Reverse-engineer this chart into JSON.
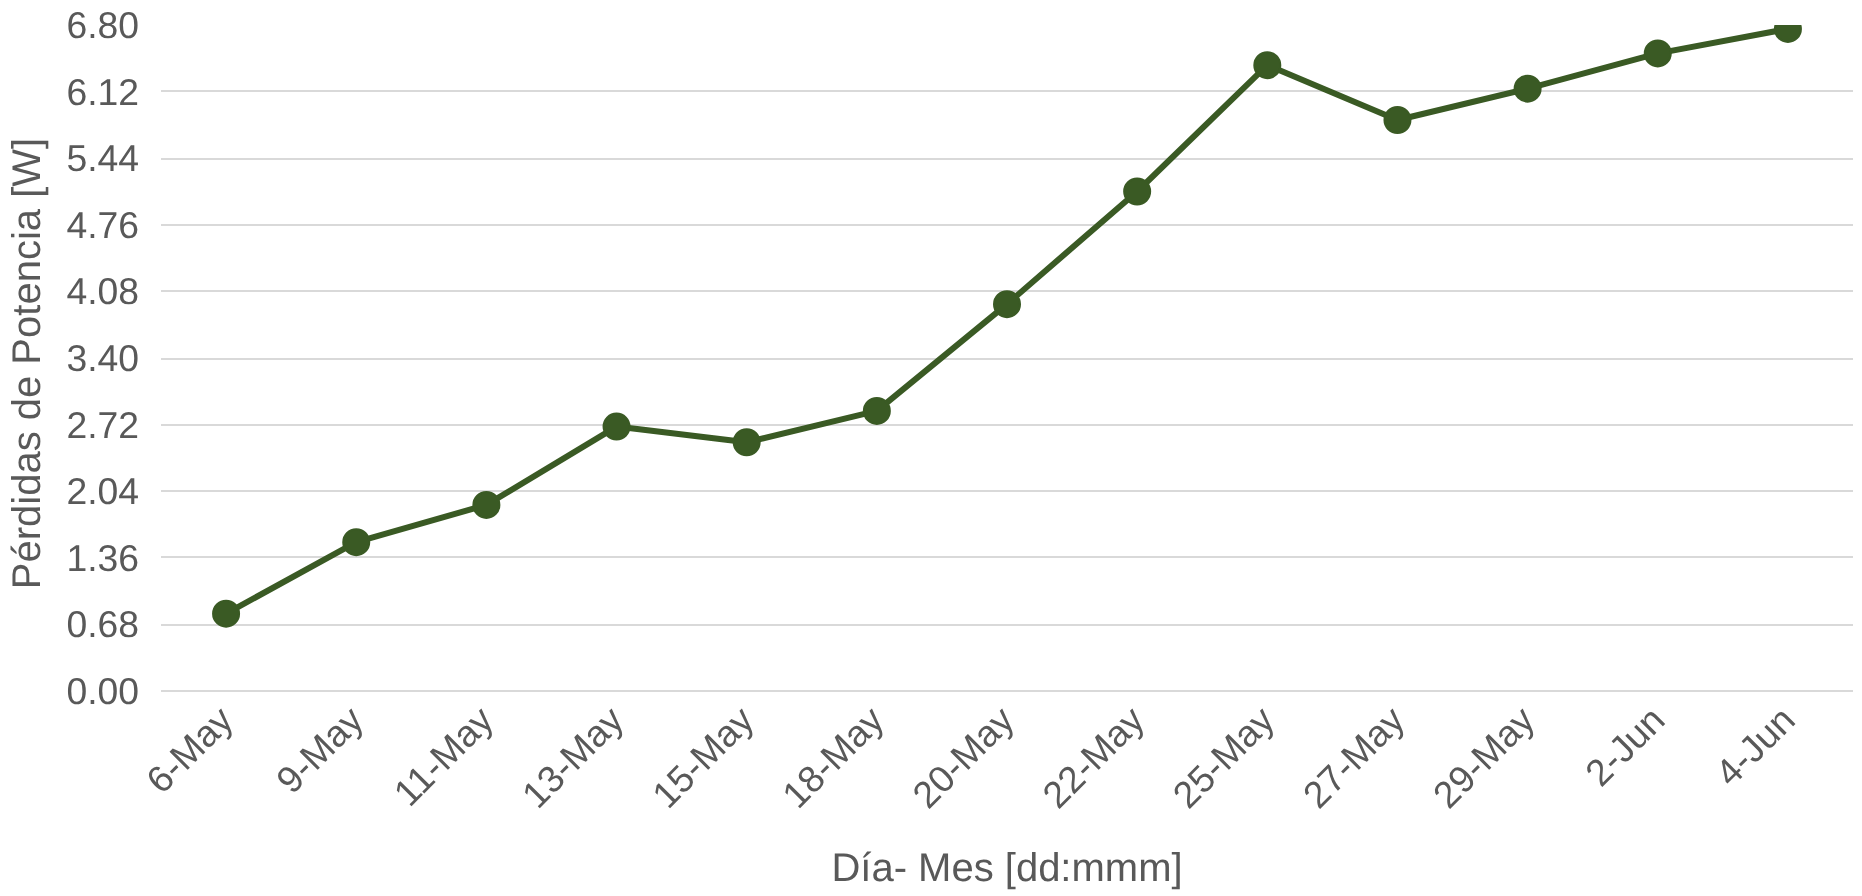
{
  "chart_data": {
    "type": "line",
    "xlabel": "Día- Mes [dd:mmm]",
    "ylabel": "Pérdidas de Potencia  [W]",
    "categories": [
      "6-May",
      "9-May",
      "11-May",
      "13-May",
      "15-May",
      "18-May",
      "20-May",
      "22-May",
      "25-May",
      "27-May",
      "29-May",
      "2-Jun",
      "4-Jun"
    ],
    "series": [
      {
        "color": "#3a5a24",
        "values": [
          0.79,
          1.52,
          1.9,
          2.7,
          2.54,
          2.86,
          3.95,
          5.1,
          6.39,
          5.83,
          6.15,
          6.51,
          6.76
        ]
      }
    ],
    "ylim": [
      0,
      6.8
    ],
    "yticks": [
      {
        "value": 0,
        "label": "0.00"
      },
      {
        "value": 0.68,
        "label": "0.68"
      },
      {
        "value": 1.36,
        "label": "1.36"
      },
      {
        "value": 2.04,
        "label": "2.04"
      },
      {
        "value": 2.72,
        "label": "2.72"
      },
      {
        "value": 3.4,
        "label": "3.40"
      },
      {
        "value": 4.08,
        "label": "4.08"
      },
      {
        "value": 4.76,
        "label": "4.76"
      },
      {
        "value": 5.44,
        "label": "5.44"
      },
      {
        "value": 6.12,
        "label": "6.12"
      },
      {
        "value": 6.8,
        "label": "6.80"
      }
    ],
    "grid": "y",
    "marker": "circle",
    "line_style": "solid"
  }
}
